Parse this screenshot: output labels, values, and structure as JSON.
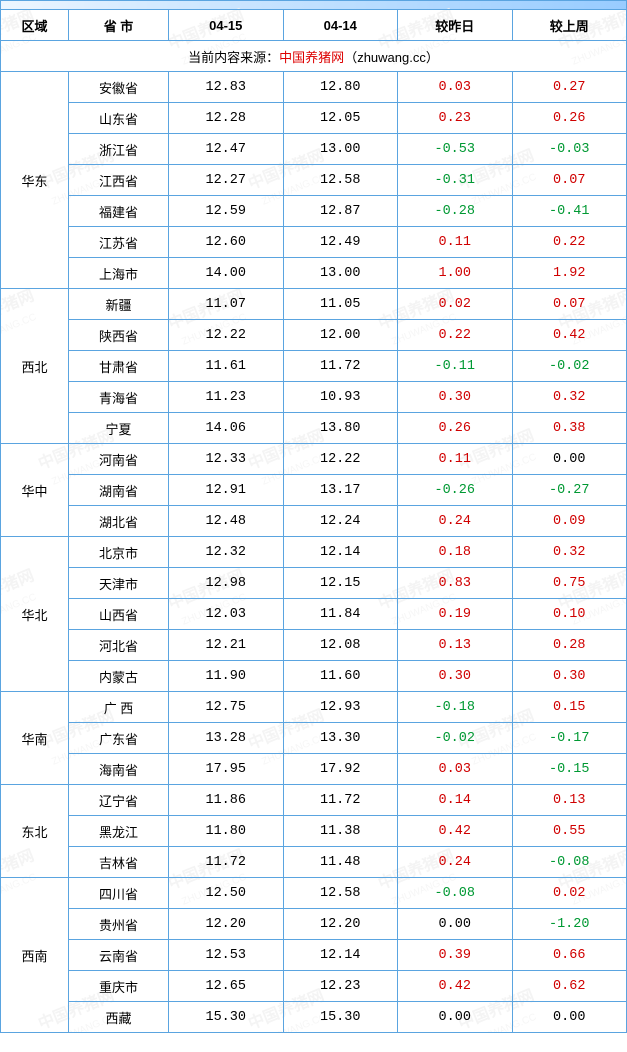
{
  "watermark": {
    "line1": "中国养猪网",
    "line2": "ZHUWANG.CC"
  },
  "columns": [
    "区域",
    "省 市",
    "04-15",
    "04-14",
    "较昨日",
    "较上周"
  ],
  "source_prefix": "当前内容来源：",
  "source_name": "中国养猪网",
  "source_suffix": "（zhuwang.cc）",
  "colors": {
    "border": "#5aa4e0",
    "positive": "#d00000",
    "negative": "#009933",
    "neutral": "#000000"
  },
  "regions": [
    {
      "name": "华东",
      "rows": [
        {
          "prov": "安徽省",
          "d1": "12.83",
          "d2": "12.80",
          "dd": "0.03",
          "dw": "0.27"
        },
        {
          "prov": "山东省",
          "d1": "12.28",
          "d2": "12.05",
          "dd": "0.23",
          "dw": "0.26"
        },
        {
          "prov": "浙江省",
          "d1": "12.47",
          "d2": "13.00",
          "dd": "-0.53",
          "dw": "-0.03"
        },
        {
          "prov": "江西省",
          "d1": "12.27",
          "d2": "12.58",
          "dd": "-0.31",
          "dw": "0.07"
        },
        {
          "prov": "福建省",
          "d1": "12.59",
          "d2": "12.87",
          "dd": "-0.28",
          "dw": "-0.41"
        },
        {
          "prov": "江苏省",
          "d1": "12.60",
          "d2": "12.49",
          "dd": "0.11",
          "dw": "0.22"
        },
        {
          "prov": "上海市",
          "d1": "14.00",
          "d2": "13.00",
          "dd": "1.00",
          "dw": "1.92"
        }
      ]
    },
    {
      "name": "西北",
      "rows": [
        {
          "prov": "新疆",
          "d1": "11.07",
          "d2": "11.05",
          "dd": "0.02",
          "dw": "0.07"
        },
        {
          "prov": "陕西省",
          "d1": "12.22",
          "d2": "12.00",
          "dd": "0.22",
          "dw": "0.42"
        },
        {
          "prov": "甘肃省",
          "d1": "11.61",
          "d2": "11.72",
          "dd": "-0.11",
          "dw": "-0.02"
        },
        {
          "prov": "青海省",
          "d1": "11.23",
          "d2": "10.93",
          "dd": "0.30",
          "dw": "0.32"
        },
        {
          "prov": "宁夏",
          "d1": "14.06",
          "d2": "13.80",
          "dd": "0.26",
          "dw": "0.38"
        }
      ]
    },
    {
      "name": "华中",
      "rows": [
        {
          "prov": "河南省",
          "d1": "12.33",
          "d2": "12.22",
          "dd": "0.11",
          "dw": "0.00"
        },
        {
          "prov": "湖南省",
          "d1": "12.91",
          "d2": "13.17",
          "dd": "-0.26",
          "dw": "-0.27"
        },
        {
          "prov": "湖北省",
          "d1": "12.48",
          "d2": "12.24",
          "dd": "0.24",
          "dw": "0.09"
        }
      ]
    },
    {
      "name": "华北",
      "rows": [
        {
          "prov": "北京市",
          "d1": "12.32",
          "d2": "12.14",
          "dd": "0.18",
          "dw": "0.32"
        },
        {
          "prov": "天津市",
          "d1": "12.98",
          "d2": "12.15",
          "dd": "0.83",
          "dw": "0.75"
        },
        {
          "prov": "山西省",
          "d1": "12.03",
          "d2": "11.84",
          "dd": "0.19",
          "dw": "0.10"
        },
        {
          "prov": "河北省",
          "d1": "12.21",
          "d2": "12.08",
          "dd": "0.13",
          "dw": "0.28"
        },
        {
          "prov": "内蒙古",
          "d1": "11.90",
          "d2": "11.60",
          "dd": "0.30",
          "dw": "0.30"
        }
      ]
    },
    {
      "name": "华南",
      "rows": [
        {
          "prov": "广 西",
          "d1": "12.75",
          "d2": "12.93",
          "dd": "-0.18",
          "dw": "0.15"
        },
        {
          "prov": "广东省",
          "d1": "13.28",
          "d2": "13.30",
          "dd": "-0.02",
          "dw": "-0.17"
        },
        {
          "prov": "海南省",
          "d1": "17.95",
          "d2": "17.92",
          "dd": "0.03",
          "dw": "-0.15"
        }
      ]
    },
    {
      "name": "东北",
      "rows": [
        {
          "prov": "辽宁省",
          "d1": "11.86",
          "d2": "11.72",
          "dd": "0.14",
          "dw": "0.13"
        },
        {
          "prov": "黑龙江",
          "d1": "11.80",
          "d2": "11.38",
          "dd": "0.42",
          "dw": "0.55"
        },
        {
          "prov": "吉林省",
          "d1": "11.72",
          "d2": "11.48",
          "dd": "0.24",
          "dw": "-0.08"
        }
      ]
    },
    {
      "name": "西南",
      "rows": [
        {
          "prov": "四川省",
          "d1": "12.50",
          "d2": "12.58",
          "dd": "-0.08",
          "dw": "0.02"
        },
        {
          "prov": "贵州省",
          "d1": "12.20",
          "d2": "12.20",
          "dd": "0.00",
          "dw": "-1.20"
        },
        {
          "prov": "云南省",
          "d1": "12.53",
          "d2": "12.14",
          "dd": "0.39",
          "dw": "0.66"
        },
        {
          "prov": "重庆市",
          "d1": "12.65",
          "d2": "12.23",
          "dd": "0.42",
          "dw": "0.62"
        },
        {
          "prov": "西藏",
          "d1": "15.30",
          "d2": "15.30",
          "dd": "0.00",
          "dw": "0.00"
        }
      ]
    }
  ]
}
